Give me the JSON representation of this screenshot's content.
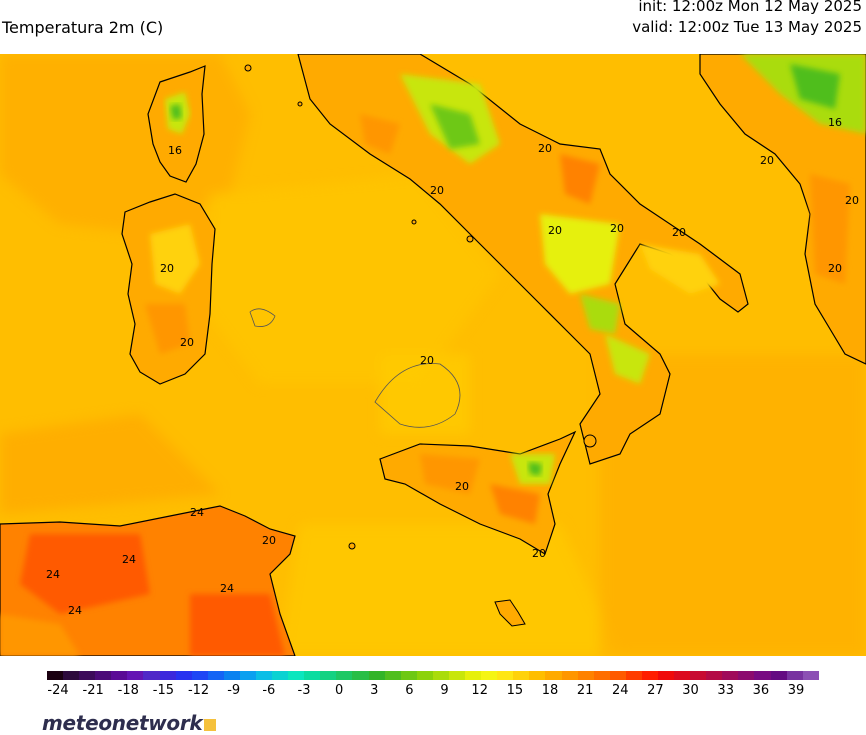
{
  "header": {
    "title": "Temperatura 2m (C)",
    "init": "init: 12:00z Mon 12 May 2025",
    "valid": "valid: 12:00z Tue 13 May 2025"
  },
  "map": {
    "contour_labels": [
      "16",
      "20",
      "20",
      "20",
      "20",
      "20",
      "20",
      "16",
      "20",
      "20",
      "24",
      "24",
      "24",
      "24",
      "24",
      "20",
      "20",
      "20",
      "20",
      "20",
      "20"
    ]
  },
  "legend": {
    "ticks": [
      "-24",
      "-21",
      "-18",
      "-15",
      "-12",
      "-9",
      "-6",
      "-3",
      "0",
      "3",
      "6",
      "9",
      "12",
      "15",
      "18",
      "21",
      "24",
      "27",
      "30",
      "33",
      "36",
      "39"
    ],
    "colors": [
      "#1a0010",
      "#2d0a3c",
      "#3c0a5a",
      "#4b0a78",
      "#5a0a96",
      "#6414b4",
      "#5028c8",
      "#3c28dc",
      "#2832f0",
      "#1e46f5",
      "#1464f5",
      "#0a82f0",
      "#0aa0f0",
      "#0abee6",
      "#0ad2d2",
      "#0ae6be",
      "#0adca0",
      "#14d282",
      "#1ec864",
      "#28be46",
      "#32b428",
      "#50be1e",
      "#6ec814",
      "#8cd20a",
      "#aadc0a",
      "#c8e60a",
      "#e6f00a",
      "#f5f514",
      "#ffe614",
      "#ffd20a",
      "#ffbe00",
      "#ffaa00",
      "#ff9600",
      "#ff8200",
      "#ff6e00",
      "#ff5a00",
      "#ff3c00",
      "#ff1e00",
      "#f00a0a",
      "#dc0a1e",
      "#c80a32",
      "#b40a46",
      "#a00a5a",
      "#8c0a6e",
      "#780a82",
      "#640a82",
      "#7832a0",
      "#8c50b4"
    ],
    "brand": "meteonetwork"
  }
}
